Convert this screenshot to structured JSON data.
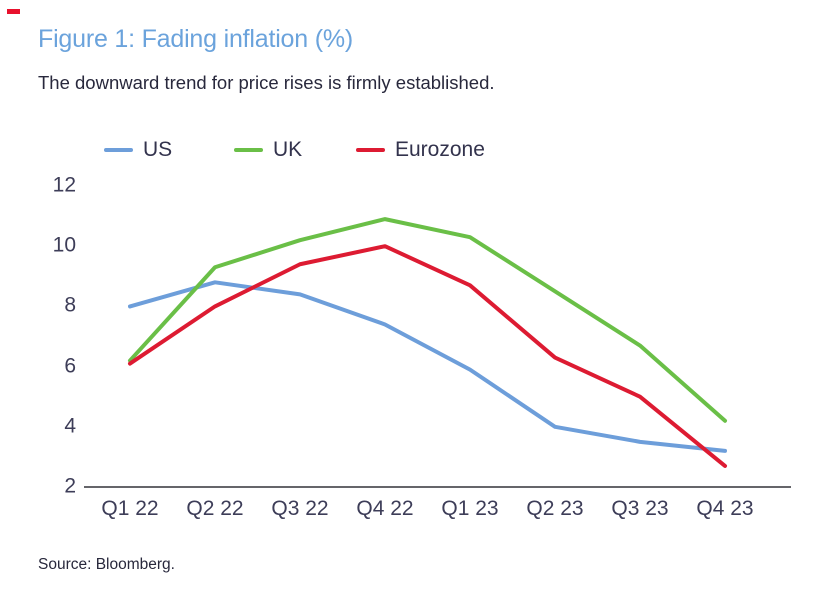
{
  "page": {
    "title": "Figure 1: Fading inflation (%)",
    "subtitle": "The downward trend for price rises is firmly established.",
    "source": "Source: Bloomberg.",
    "colors": {
      "title": "#6ba3dc",
      "text": "#28283c",
      "tick": "#3d3d58",
      "legend_text": "#33334d",
      "axis_line": "#4f4f55",
      "corner_mark": "#e8112d"
    }
  },
  "chart_data": {
    "type": "line",
    "title": "Figure 1: Fading inflation (%)",
    "subtitle": "The downward trend for price rises is firmly established.",
    "categories": [
      "Q1 22",
      "Q2 22",
      "Q3 22",
      "Q4 22",
      "Q1 23",
      "Q2 23",
      "Q3 23",
      "Q4 23"
    ],
    "series": [
      {
        "name": "US",
        "color": "#6d9eda",
        "values": [
          8.0,
          8.8,
          8.4,
          7.4,
          5.9,
          4.0,
          3.5,
          3.2
        ]
      },
      {
        "name": "UK",
        "color": "#6abf47",
        "values": [
          6.2,
          9.3,
          10.2,
          10.9,
          10.3,
          8.5,
          6.7,
          4.2
        ]
      },
      {
        "name": "Eurozone",
        "color": "#dd1b32",
        "values": [
          6.1,
          8.0,
          9.4,
          10.0,
          8.7,
          6.3,
          5.0,
          2.7
        ]
      }
    ],
    "yticks": [
      12,
      10,
      8,
      6,
      4,
      2
    ],
    "ylim": [
      2,
      12
    ],
    "xlabel": "",
    "ylabel": "",
    "grid": false,
    "legend_position": "top",
    "source": "Source: Bloomberg."
  }
}
